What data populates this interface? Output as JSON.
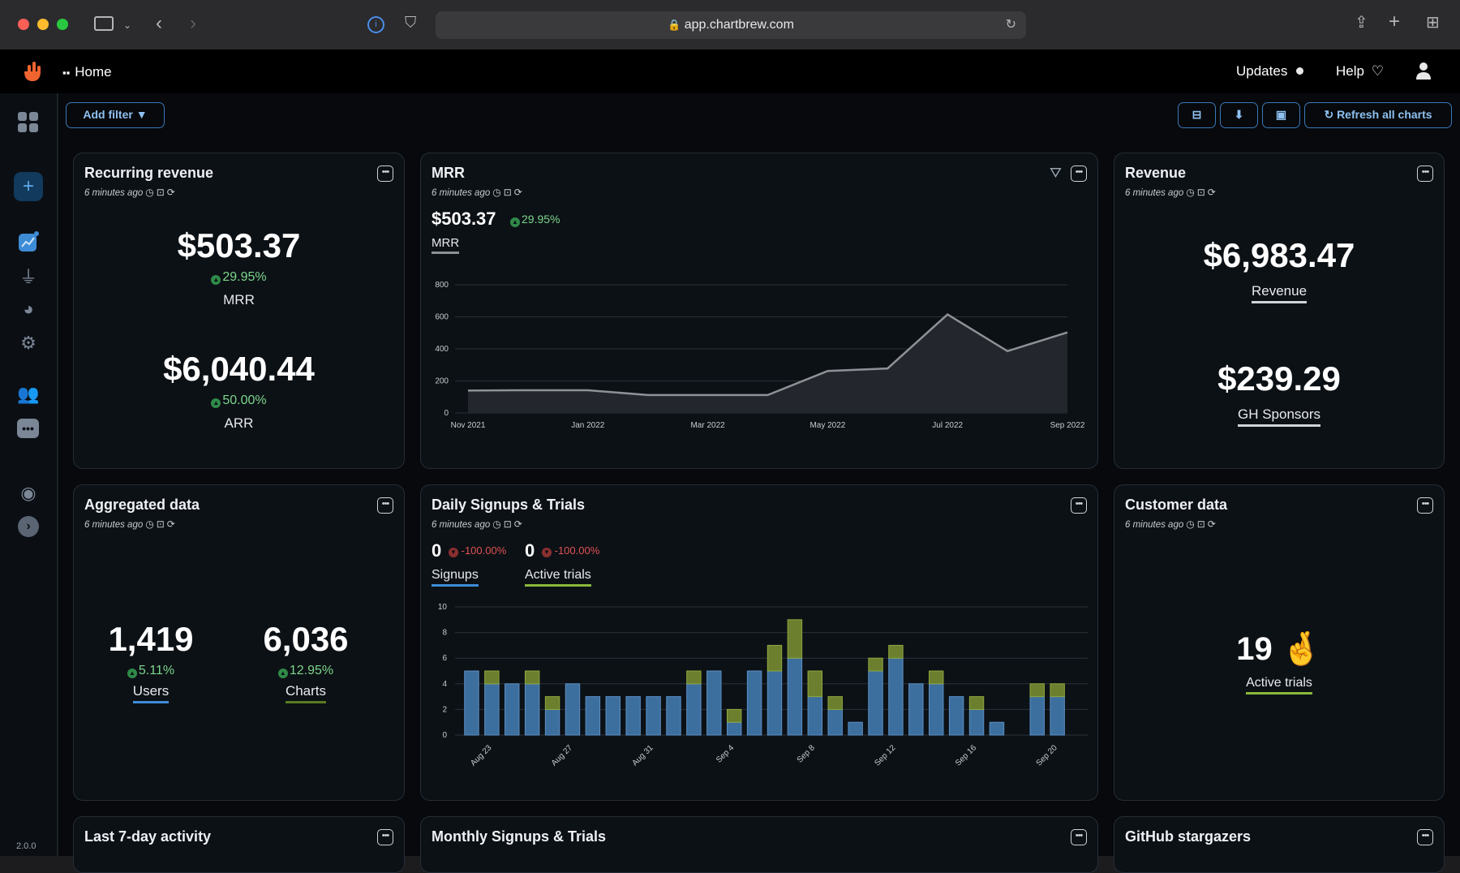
{
  "browser": {
    "url": "app.chartbrew.com"
  },
  "nav": {
    "home_label": "Home",
    "updates_label": "Updates",
    "help_label": "Help"
  },
  "toolbar": {
    "add_filter_label": "Add filter",
    "refresh_label": "Refresh all charts"
  },
  "sidebar": {
    "version": "2.0.0"
  },
  "cards": {
    "recurring": {
      "title": "Recurring revenue",
      "meta": "6 minutes ago",
      "v1": "$503.37",
      "p1": "29.95%",
      "l1": "MRR",
      "v2": "$6,040.44",
      "p2": "50.00%",
      "l2": "ARR"
    },
    "mrr": {
      "title": "MRR",
      "meta": "6 minutes ago",
      "value": "$503.37",
      "pct": "29.95%",
      "legend": "MRR"
    },
    "revenue": {
      "title": "Revenue",
      "meta": "6 minutes ago",
      "v1": "$6,983.47",
      "l1": "Revenue",
      "v2": "$239.29",
      "l2": "GH Sponsors"
    },
    "aggregated": {
      "title": "Aggregated data",
      "meta": "6 minutes ago",
      "v1": "1,419",
      "p1": "5.11%",
      "l1": "Users",
      "v2": "6,036",
      "p2": "12.95%",
      "l2": "Charts"
    },
    "daily": {
      "title": "Daily Signups & Trials",
      "meta": "6 minutes ago",
      "v1": "0",
      "p1": "-100.00%",
      "l1": "Signups",
      "v2": "0",
      "p2": "-100.00%",
      "l2": "Active trials"
    },
    "customer": {
      "title": "Customer data",
      "meta": "6 minutes ago",
      "value": "19",
      "emoji": "🤞",
      "label": "Active trials"
    },
    "last7": {
      "title": "Last 7-day activity"
    },
    "monthly": {
      "title": "Monthly Signups & Trials"
    },
    "github": {
      "title": "GitHub stargazers"
    }
  },
  "chart_data": [
    {
      "type": "area",
      "title": "MRR",
      "x": [
        "Nov 2021",
        "Dec 2021",
        "Jan 2022",
        "Feb 2022",
        "Mar 2022",
        "Apr 2022",
        "May 2022",
        "Jun 2022",
        "Jul 2022",
        "Aug 2022",
        "Sep 2022"
      ],
      "series": [
        {
          "name": "MRR",
          "values": [
            140,
            142,
            142,
            112,
            112,
            112,
            262,
            278,
            615,
            386,
            503
          ]
        }
      ],
      "xticks": [
        "Nov 2021",
        "Jan 2022",
        "Mar 2022",
        "May 2022",
        "Jul 2022",
        "Sep 2022"
      ],
      "yticks": [
        0,
        200,
        400,
        600,
        800
      ],
      "ylim": [
        0,
        800
      ],
      "grid": true,
      "colors": {
        "line": "#8e9196",
        "fill": "#23272d"
      }
    },
    {
      "type": "bar",
      "title": "Daily Signups & Trials",
      "stacked": true,
      "categories": [
        "Aug 22",
        "Aug 23",
        "Aug 24",
        "Aug 25",
        "Aug 26",
        "Aug 27",
        "Aug 28",
        "Aug 29",
        "Aug 30",
        "Aug 31",
        "Sep 1",
        "Sep 2",
        "Sep 3",
        "Sep 4",
        "Sep 5",
        "Sep 6",
        "Sep 7",
        "Sep 8",
        "Sep 9",
        "Sep 10",
        "Sep 11",
        "Sep 12",
        "Sep 13",
        "Sep 14",
        "Sep 15",
        "Sep 16",
        "Sep 17",
        "Sep 18",
        "Sep 19",
        "Sep 20",
        "Sep 21"
      ],
      "series": [
        {
          "name": "Signups",
          "values": [
            5,
            4,
            4,
            4,
            2,
            4,
            3,
            3,
            3,
            3,
            3,
            4,
            5,
            1,
            5,
            5,
            6,
            3,
            2,
            1,
            5,
            6,
            4,
            4,
            3,
            2,
            1,
            0,
            3,
            3,
            0
          ],
          "color": "#3d6f9e"
        },
        {
          "name": "Active trials",
          "values": [
            0,
            1,
            0,
            1,
            1,
            0,
            0,
            0,
            0,
            0,
            0,
            1,
            0,
            1,
            0,
            2,
            3,
            2,
            1,
            0,
            1,
            1,
            0,
            1,
            0,
            1,
            0,
            0,
            1,
            1,
            0
          ],
          "color": "#6b7f2e"
        }
      ],
      "xticks": [
        "Aug 23",
        "Aug 27",
        "Aug 31",
        "Sep 4",
        "Sep 8",
        "Sep 12",
        "Sep 16",
        "Sep 20"
      ],
      "yticks": [
        0,
        2,
        4,
        6,
        8,
        10
      ],
      "ylim": [
        0,
        10
      ],
      "grid": true
    }
  ]
}
